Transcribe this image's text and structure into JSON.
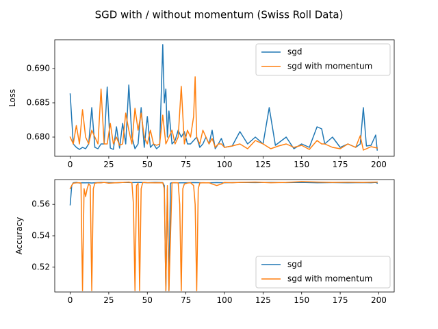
{
  "figure_title": "SGD with / without momentum (Swiss Roll Data)",
  "colors": {
    "sgd": "#1f77b4",
    "sgd_with_momentum": "#ff7f0e"
  },
  "chart_data": [
    {
      "type": "line",
      "ylabel": "Loss",
      "xlabel": "",
      "xlim": [
        -10,
        210
      ],
      "ylim": [
        0.6772,
        0.6942
      ],
      "xticks": [
        0,
        25,
        50,
        75,
        100,
        125,
        150,
        175,
        200
      ],
      "yticks": [
        0.68,
        0.685,
        0.69
      ],
      "ytick_labels": [
        "0.680",
        "0.685",
        "0.690"
      ],
      "legend_position": "upper right",
      "series": [
        {
          "name": "sgd",
          "color": "#1f77b4",
          "x": [
            0,
            2,
            4,
            6,
            8,
            10,
            12,
            14,
            16,
            18,
            20,
            22,
            24,
            26,
            28,
            30,
            32,
            34,
            36,
            38,
            40,
            42,
            44,
            46,
            48,
            50,
            52,
            54,
            56,
            58,
            60,
            61,
            62,
            63,
            64,
            66,
            68,
            70,
            72,
            74,
            76,
            78,
            80,
            82,
            84,
            86,
            88,
            90,
            92,
            94,
            96,
            98,
            100,
            105,
            110,
            115,
            120,
            125,
            129,
            133,
            140,
            145,
            150,
            155,
            160,
            163,
            165,
            170,
            175,
            180,
            185,
            188,
            190,
            192,
            195,
            198,
            199
          ],
          "y": [
            0.6863,
            0.679,
            0.6785,
            0.6782,
            0.6785,
            0.6783,
            0.679,
            0.6843,
            0.6785,
            0.6783,
            0.679,
            0.679,
            0.6873,
            0.6784,
            0.6782,
            0.6815,
            0.6784,
            0.682,
            0.679,
            0.6876,
            0.68,
            0.6783,
            0.679,
            0.6843,
            0.6785,
            0.683,
            0.6785,
            0.679,
            0.6783,
            0.6787,
            0.6935,
            0.685,
            0.687,
            0.68,
            0.6838,
            0.679,
            0.6795,
            0.681,
            0.68,
            0.6808,
            0.679,
            0.679,
            0.6795,
            0.68,
            0.6785,
            0.679,
            0.68,
            0.679,
            0.681,
            0.6783,
            0.679,
            0.6798,
            0.6785,
            0.6787,
            0.6808,
            0.679,
            0.68,
            0.679,
            0.6843,
            0.6788,
            0.68,
            0.6783,
            0.679,
            0.6785,
            0.6815,
            0.6812,
            0.679,
            0.68,
            0.6785,
            0.679,
            0.6785,
            0.679,
            0.6843,
            0.6787,
            0.6788,
            0.6803,
            0.6781
          ]
        },
        {
          "name": "sgd with momentum",
          "color": "#ff7f0e",
          "x": [
            0,
            2,
            4,
            6,
            8,
            10,
            12,
            14,
            16,
            18,
            20,
            22,
            24,
            26,
            28,
            30,
            32,
            34,
            36,
            38,
            40,
            42,
            44,
            46,
            48,
            50,
            52,
            54,
            56,
            58,
            60,
            62,
            64,
            66,
            68,
            70,
            72,
            74,
            76,
            78,
            80,
            81,
            82,
            84,
            86,
            88,
            90,
            92,
            94,
            96,
            98,
            100,
            105,
            110,
            115,
            120,
            125,
            130,
            135,
            140,
            145,
            150,
            155,
            160,
            163,
            165,
            170,
            175,
            180,
            185,
            188,
            190,
            195,
            199
          ],
          "y": [
            0.68,
            0.679,
            0.6817,
            0.679,
            0.684,
            0.68,
            0.679,
            0.681,
            0.68,
            0.679,
            0.687,
            0.679,
            0.679,
            0.682,
            0.679,
            0.68,
            0.6788,
            0.679,
            0.6835,
            0.681,
            0.679,
            0.6842,
            0.681,
            0.6835,
            0.68,
            0.679,
            0.681,
            0.679,
            0.6788,
            0.679,
            0.6832,
            0.679,
            0.68,
            0.681,
            0.679,
            0.68,
            0.6874,
            0.679,
            0.681,
            0.68,
            0.683,
            0.6888,
            0.68,
            0.679,
            0.681,
            0.68,
            0.679,
            0.6798,
            0.6785,
            0.679,
            0.679,
            0.6785,
            0.6787,
            0.679,
            0.6783,
            0.6795,
            0.679,
            0.6783,
            0.6787,
            0.679,
            0.6785,
            0.6788,
            0.6782,
            0.6795,
            0.679,
            0.679,
            0.6785,
            0.6783,
            0.679,
            0.6785,
            0.6802,
            0.6781,
            0.6786,
            0.6784
          ]
        }
      ]
    },
    {
      "type": "line",
      "ylabel": "Accuracy",
      "xlabel": "",
      "xlim": [
        -10,
        210
      ],
      "ylim": [
        0.5042,
        0.5758
      ],
      "xticks": [
        0,
        25,
        50,
        75,
        100,
        125,
        150,
        175,
        200
      ],
      "yticks": [
        0.52,
        0.54,
        0.56
      ],
      "ytick_labels": [
        "0.52",
        "0.54",
        "0.56"
      ],
      "legend_position": "lower right",
      "series": [
        {
          "name": "sgd",
          "color": "#1f77b4",
          "x": [
            0,
            1,
            2,
            4,
            6,
            8,
            10,
            12,
            14,
            16,
            20,
            25,
            30,
            35,
            40,
            45,
            50,
            55,
            60,
            61,
            62,
            63,
            64,
            65,
            66,
            70,
            75,
            80,
            85,
            90,
            95,
            100,
            105,
            110,
            120,
            130,
            140,
            150,
            160,
            170,
            180,
            190,
            195,
            198,
            199
          ],
          "y": [
            0.5597,
            0.572,
            0.5738,
            0.574,
            0.5736,
            0.5738,
            0.5737,
            0.5738,
            0.5736,
            0.5738,
            0.574,
            0.5739,
            0.5738,
            0.574,
            0.5739,
            0.574,
            0.5738,
            0.574,
            0.5739,
            0.572,
            0.505,
            0.57,
            0.505,
            0.5735,
            0.5738,
            0.5737,
            0.5738,
            0.5739,
            0.5738,
            0.5737,
            0.5739,
            0.5738,
            0.5739,
            0.574,
            0.5739,
            0.574,
            0.5739,
            0.574,
            0.5738,
            0.5739,
            0.5738,
            0.5739,
            0.5738,
            0.574,
            0.5735
          ]
        },
        {
          "name": "sgd with momentum",
          "color": "#ff7f0e",
          "x": [
            0,
            1,
            2,
            4,
            6,
            7,
            8,
            9,
            10,
            11,
            12,
            13,
            14,
            15,
            16,
            18,
            20,
            22,
            25,
            30,
            35,
            38,
            40,
            41,
            42,
            43,
            44,
            45,
            46,
            47,
            48,
            50,
            55,
            60,
            61,
            62,
            63,
            64,
            66,
            68,
            70,
            71,
            72,
            73,
            74,
            76,
            78,
            80,
            81,
            82,
            83,
            84,
            86,
            88,
            90,
            92,
            95,
            98,
            100,
            105,
            110,
            120,
            130,
            140,
            150,
            160,
            170,
            180,
            190,
            199
          ],
          "y": [
            0.57,
            0.572,
            0.5735,
            0.5737,
            0.5738,
            0.5735,
            0.505,
            0.57,
            0.565,
            0.57,
            0.573,
            0.572,
            0.505,
            0.57,
            0.5735,
            0.5738,
            0.5737,
            0.574,
            0.5735,
            0.5738,
            0.574,
            0.5742,
            0.5738,
            0.56,
            0.505,
            0.572,
            0.5735,
            0.505,
            0.57,
            0.5738,
            0.574,
            0.5738,
            0.5737,
            0.5738,
            0.57,
            0.505,
            0.572,
            0.505,
            0.5737,
            0.5738,
            0.5737,
            0.56,
            0.505,
            0.57,
            0.573,
            0.5736,
            0.5738,
            0.572,
            0.56,
            0.505,
            0.57,
            0.5736,
            0.5738,
            0.5737,
            0.5738,
            0.573,
            0.572,
            0.573,
            0.574,
            0.5738,
            0.574,
            0.5742,
            0.5738,
            0.574,
            0.5745,
            0.5742,
            0.574,
            0.5741,
            0.574,
            0.5742
          ]
        }
      ]
    }
  ]
}
